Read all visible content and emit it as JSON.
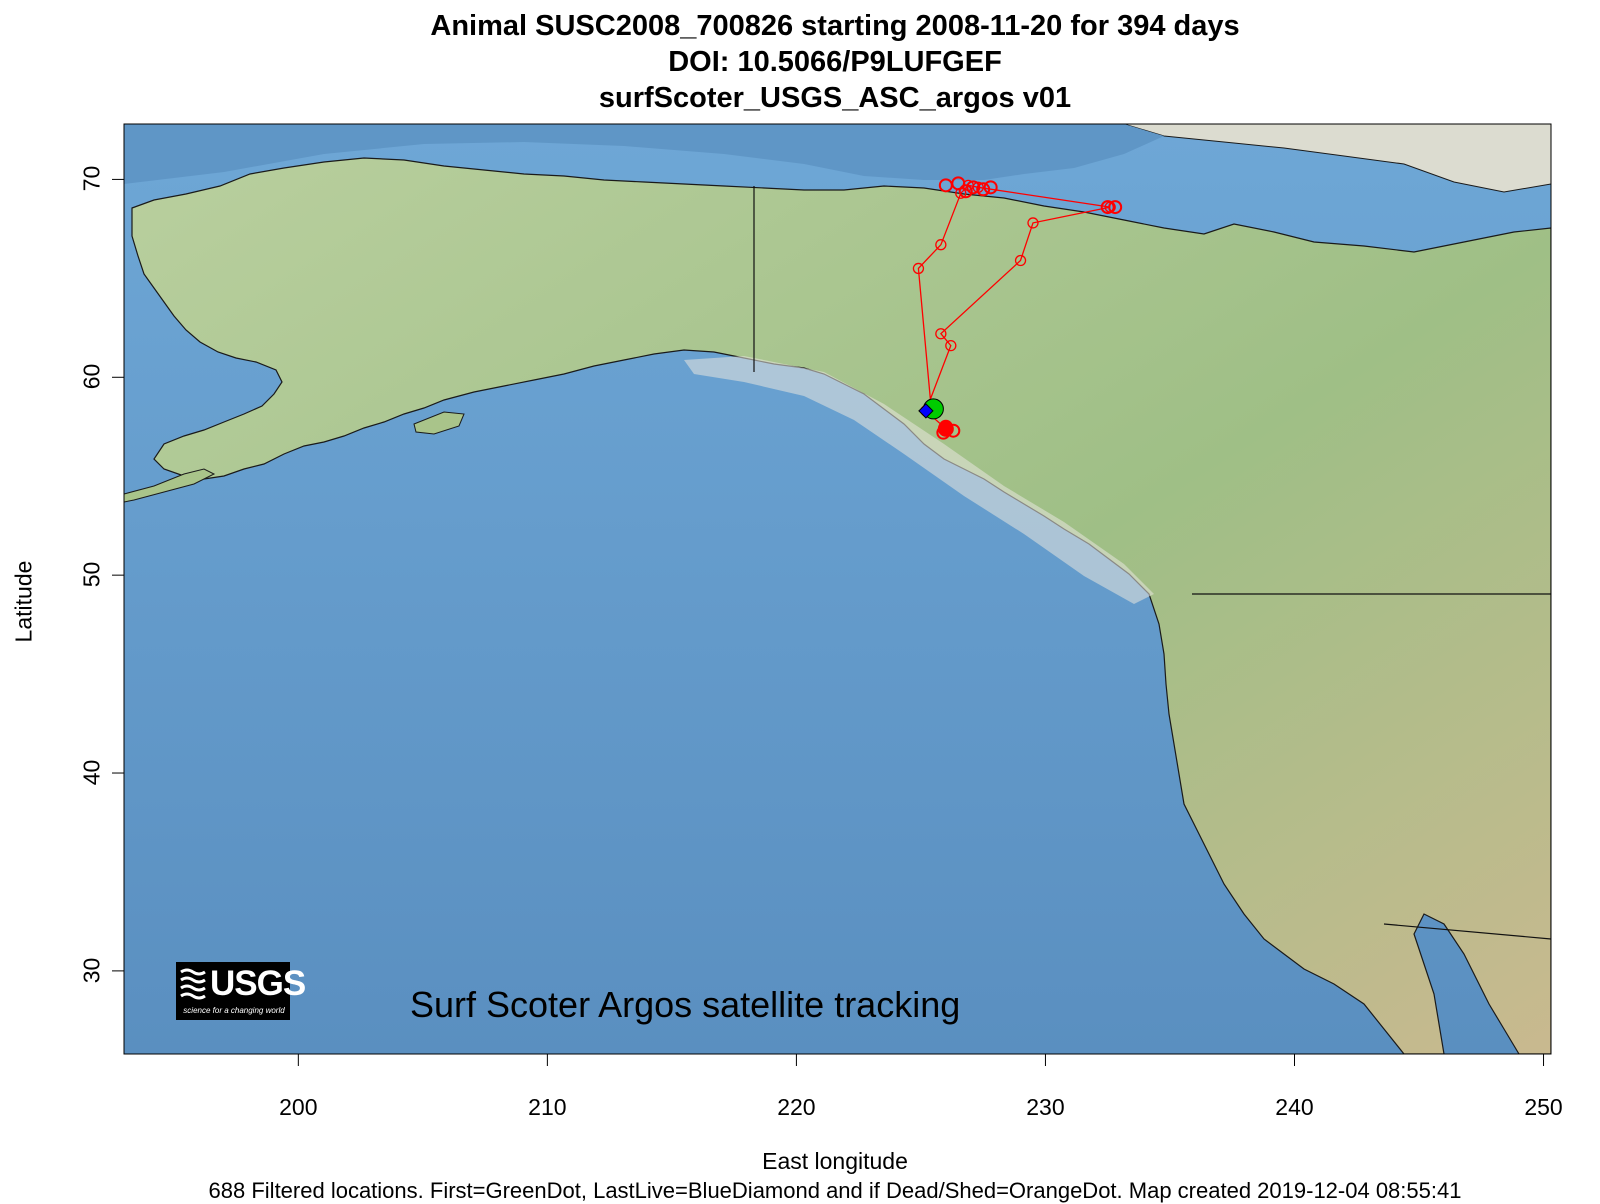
{
  "title": {
    "line1": "Animal  SUSC2008_700826 starting  2008-11-20 for 394 days",
    "line2": "DOI: 10.5066/P9LUFGEF",
    "line3": "surfScoter_USGS_ASC_argos v01"
  },
  "chart_data": {
    "type": "map-track",
    "xlabel": "East longitude",
    "ylabel": "Latitude",
    "xlim": [
      193,
      250.3
    ],
    "ylim": [
      25.8,
      72.8
    ],
    "x_ticks": [
      "200",
      "210",
      "220",
      "230",
      "240",
      "250"
    ],
    "y_ticks": [
      "30",
      "40",
      "50",
      "60",
      "70"
    ],
    "track": [
      {
        "lon": 225.4,
        "lat": 58.6
      },
      {
        "lon": 224.9,
        "lat": 65.5
      },
      {
        "lon": 225.8,
        "lat": 66.7
      },
      {
        "lon": 226.6,
        "lat": 69.3
      },
      {
        "lon": 226.9,
        "lat": 69.7
      },
      {
        "lon": 227.3,
        "lat": 69.6
      },
      {
        "lon": 232.6,
        "lat": 68.6
      },
      {
        "lon": 229.5,
        "lat": 67.8
      },
      {
        "lon": 229.0,
        "lat": 65.9
      },
      {
        "lon": 225.8,
        "lat": 62.2
      },
      {
        "lon": 226.2,
        "lat": 61.6
      },
      {
        "lon": 225.2,
        "lat": 58.3
      },
      {
        "lon": 226.0,
        "lat": 57.4
      }
    ],
    "loc_clusters": [
      {
        "lon": 226.0,
        "lat": 69.7
      },
      {
        "lon": 226.5,
        "lat": 69.8
      },
      {
        "lon": 226.8,
        "lat": 69.4
      },
      {
        "lon": 227.1,
        "lat": 69.6
      },
      {
        "lon": 227.5,
        "lat": 69.5
      },
      {
        "lon": 227.8,
        "lat": 69.6
      },
      {
        "lon": 232.5,
        "lat": 68.6
      },
      {
        "lon": 232.8,
        "lat": 68.6
      },
      {
        "lon": 226.0,
        "lat": 57.5
      },
      {
        "lon": 226.3,
        "lat": 57.3
      },
      {
        "lon": 225.9,
        "lat": 57.2
      }
    ],
    "first_location": {
      "lon": 225.5,
      "lat": 58.4
    },
    "last_live_location": {
      "lon": 225.2,
      "lat": 58.3
    },
    "colors": {
      "track": "#ff0000",
      "first": "#00cc00",
      "last_live": "#0000ff",
      "ocean": "#5f96c6",
      "land": "#a9c48a"
    }
  },
  "logo_text": {
    "word": "USGS",
    "tagline": "science for a changing world"
  },
  "caption": "Surf Scoter Argos satellite tracking",
  "footer": "688 Filtered locations. First=GreenDot, LastLive=BlueDiamond and if Dead/Shed=OrangeDot. Map created  2019-12-04 08:55:41"
}
